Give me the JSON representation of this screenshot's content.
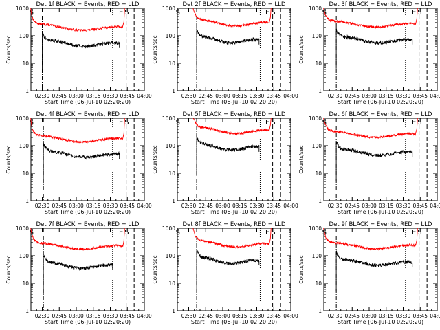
{
  "colors": {
    "events": "#000000",
    "lld": "#ff0000",
    "axis": "#000000"
  },
  "chart_data": [
    {
      "type": "line",
      "title": "Det 1f BLACK = Events, RED = LLD",
      "xlabel": "Start Time (06-Jul-10 02:20:20)",
      "ylabel": "Counts/sec",
      "x_ticks": [
        "02:30",
        "02:45",
        "03:00",
        "03:15",
        "03:30",
        "03:45",
        "04:00"
      ],
      "y_ticks": [
        "1",
        "10",
        "100",
        "1000"
      ],
      "ylog": true,
      "ylim": [
        1,
        1000
      ],
      "xlim_minutes": [
        20,
        120
      ],
      "markers": [
        {
          "label": "S",
          "t": 21
        },
        {
          "label": "E",
          "t": 100
        },
        {
          "label": "S",
          "t": 105
        }
      ],
      "events": {
        "t_start": 30,
        "t_end": 98,
        "level": 60
      },
      "lld": {
        "t_start": 21,
        "t_end": 101,
        "level": 230
      },
      "vlines": [
        {
          "t": 30,
          "style": "dashdot"
        },
        {
          "t": 92,
          "style": "dotted"
        },
        {
          "t": 104,
          "style": "dashed"
        },
        {
          "t": 111,
          "style": "dashed"
        }
      ]
    },
    {
      "type": "line",
      "title": "Det 2f BLACK = Events, RED = LLD",
      "xlabel": "Start Time (06-Jul-10 02:20:20)",
      "ylabel": "Counts/sec",
      "x_ticks": [
        "02:30",
        "02:45",
        "03:00",
        "03:15",
        "03:30",
        "03:45",
        "04:00"
      ],
      "y_ticks": [
        "1",
        "10",
        "100",
        "1000"
      ],
      "ylog": true,
      "ylim": [
        1,
        1000
      ],
      "xlim_minutes": [
        20,
        120
      ],
      "markers": [
        {
          "label": "S",
          "t": 21
        },
        {
          "label": "E",
          "t": 100
        },
        {
          "label": "S",
          "t": 105
        }
      ],
      "events": {
        "t_start": 37,
        "t_end": 92,
        "level": 80
      },
      "lld": {
        "t_start": 35,
        "t_end": 101,
        "level": 330
      },
      "vlines": [
        {
          "t": 37,
          "style": "dashdot"
        },
        {
          "t": 93,
          "style": "dotted"
        },
        {
          "t": 104,
          "style": "dashed"
        },
        {
          "t": 111,
          "style": "dashed"
        }
      ]
    },
    {
      "type": "line",
      "title": "Det 3f BLACK = Events, RED = LLD",
      "xlabel": "Start Time (06-Jul-10 02:20:20)",
      "ylabel": "Counts/sec",
      "x_ticks": [
        "02:30",
        "02:45",
        "03:00",
        "03:15",
        "03:30",
        "03:45",
        "04:00"
      ],
      "y_ticks": [
        "1",
        "10",
        "100",
        "1000"
      ],
      "ylog": true,
      "ylim": [
        1,
        1000
      ],
      "xlim_minutes": [
        20,
        120
      ],
      "markers": [
        {
          "label": "S",
          "t": 21
        },
        {
          "label": "E",
          "t": 100
        },
        {
          "label": "S",
          "t": 105
        }
      ],
      "events": {
        "t_start": 31,
        "t_end": 98,
        "level": 80
      },
      "lld": {
        "t_start": 21,
        "t_end": 101,
        "level": 300
      },
      "vlines": [
        {
          "t": 31,
          "style": "dashdot"
        },
        {
          "t": 92,
          "style": "dotted"
        },
        {
          "t": 104,
          "style": "dashed"
        },
        {
          "t": 111,
          "style": "dashed"
        }
      ]
    },
    {
      "type": "line",
      "title": "Det 4f BLACK = Events, RED = LLD",
      "xlabel": "Start Time (06-Jul-10 02:20:20)",
      "ylabel": "Counts/sec",
      "x_ticks": [
        "02:30",
        "02:45",
        "03:00",
        "03:15",
        "03:30",
        "03:45",
        "04:00"
      ],
      "y_ticks": [
        "1",
        "10",
        "100",
        "1000"
      ],
      "ylog": true,
      "ylim": [
        1,
        1000
      ],
      "xlim_minutes": [
        20,
        120
      ],
      "markers": [
        {
          "label": "S",
          "t": 21
        },
        {
          "label": "E",
          "t": 100
        },
        {
          "label": "S",
          "t": 105
        }
      ],
      "events": {
        "t_start": 31,
        "t_end": 98,
        "level": 55
      },
      "lld": {
        "t_start": 21,
        "t_end": 101,
        "level": 200
      },
      "vlines": [
        {
          "t": 31,
          "style": "dashdot"
        },
        {
          "t": 92,
          "style": "dotted"
        },
        {
          "t": 104,
          "style": "dashed"
        },
        {
          "t": 111,
          "style": "dashed"
        }
      ]
    },
    {
      "type": "line",
      "title": "Det 5f BLACK = Events, RED = LLD",
      "xlabel": "Start Time (06-Jul-10 02:20:20)",
      "ylabel": "Counts/sec",
      "x_ticks": [
        "02:30",
        "02:45",
        "03:00",
        "03:15",
        "03:30",
        "03:45",
        "04:00"
      ],
      "y_ticks": [
        "1",
        "10",
        "100",
        "1000"
      ],
      "ylog": true,
      "ylim": [
        1,
        1000
      ],
      "xlim_minutes": [
        20,
        120
      ],
      "markers": [
        {
          "label": "S",
          "t": 21
        },
        {
          "label": "E",
          "t": 100
        },
        {
          "label": "S",
          "t": 105
        }
      ],
      "events": {
        "t_start": 37,
        "t_end": 92,
        "level": 100
      },
      "lld": {
        "t_start": 35,
        "t_end": 101,
        "level": 400
      },
      "vlines": [
        {
          "t": 37,
          "style": "dashdot"
        },
        {
          "t": 93,
          "style": "dotted"
        },
        {
          "t": 104,
          "style": "dashed"
        },
        {
          "t": 111,
          "style": "dashed"
        }
      ]
    },
    {
      "type": "line",
      "title": "Det 6f BLACK = Events, RED = LLD",
      "xlabel": "Start Time (06-Jul-10 02:20:20)",
      "ylabel": "Counts/sec",
      "x_ticks": [
        "02:30",
        "02:45",
        "03:00",
        "03:15",
        "03:30",
        "03:45",
        "04:00"
      ],
      "y_ticks": [
        "1",
        "10",
        "100",
        "1000"
      ],
      "ylog": true,
      "ylim": [
        1,
        1000
      ],
      "xlim_minutes": [
        20,
        120
      ],
      "markers": [
        {
          "label": "S",
          "t": 21
        },
        {
          "label": "E",
          "t": 100
        },
        {
          "label": "S",
          "t": 105
        }
      ],
      "events": {
        "t_start": 31,
        "t_end": 98,
        "level": 65
      },
      "lld": {
        "t_start": 21,
        "t_end": 101,
        "level": 290
      },
      "vlines": [
        {
          "t": 31,
          "style": "dashdot"
        },
        {
          "t": 92,
          "style": "dotted"
        },
        {
          "t": 104,
          "style": "dashed"
        },
        {
          "t": 111,
          "style": "dashed"
        }
      ]
    },
    {
      "type": "line",
      "title": "Det 7f BLACK = Events, RED = LLD",
      "xlabel": "Start Time (06-Jul-10 02:20:20)",
      "ylabel": "Counts/sec",
      "x_ticks": [
        "02:30",
        "02:45",
        "03:00",
        "03:15",
        "03:30",
        "03:45",
        "04:00"
      ],
      "y_ticks": [
        "1",
        "10",
        "100",
        "1000"
      ],
      "ylog": true,
      "ylim": [
        1,
        1000
      ],
      "xlim_minutes": [
        20,
        120
      ],
      "markers": [
        {
          "label": "S",
          "t": 21
        },
        {
          "label": "E",
          "t": 100
        },
        {
          "label": "S",
          "t": 105
        }
      ],
      "events": {
        "t_start": 31,
        "t_end": 92,
        "level": 50
      },
      "lld": {
        "t_start": 21,
        "t_end": 101,
        "level": 250
      },
      "vlines": [
        {
          "t": 31,
          "style": "dashdot"
        },
        {
          "t": 92,
          "style": "dotted"
        },
        {
          "t": 104,
          "style": "dashed"
        },
        {
          "t": 111,
          "style": "dashed"
        }
      ]
    },
    {
      "type": "line",
      "title": "Det 8f BLACK = Events, RED = LLD",
      "xlabel": "Start Time (06-Jul-10 02:20:20)",
      "ylabel": "Counts/sec",
      "x_ticks": [
        "02:30",
        "02:45",
        "03:00",
        "03:15",
        "03:30",
        "03:45",
        "04:00"
      ],
      "y_ticks": [
        "1",
        "10",
        "100",
        "1000"
      ],
      "ylog": true,
      "ylim": [
        1,
        1000
      ],
      "xlim_minutes": [
        20,
        120
      ],
      "markers": [
        {
          "label": "S",
          "t": 21
        },
        {
          "label": "E",
          "t": 100
        },
        {
          "label": "S",
          "t": 105
        }
      ],
      "events": {
        "t_start": 37,
        "t_end": 92,
        "level": 75
      },
      "lld": {
        "t_start": 35,
        "t_end": 101,
        "level": 300
      },
      "vlines": [
        {
          "t": 37,
          "style": "dashdot"
        },
        {
          "t": 93,
          "style": "dotted"
        },
        {
          "t": 104,
          "style": "dashed"
        },
        {
          "t": 111,
          "style": "dashed"
        }
      ]
    },
    {
      "type": "line",
      "title": "Det 9f BLACK = Events, RED = LLD",
      "xlabel": "Start Time (06-Jul-10 02:20:20)",
      "ylabel": "Counts/sec",
      "x_ticks": [
        "02:30",
        "02:45",
        "03:00",
        "03:15",
        "03:30",
        "03:45",
        "04:00"
      ],
      "y_ticks": [
        "1",
        "10",
        "100",
        "1000"
      ],
      "ylog": true,
      "ylim": [
        1,
        1000
      ],
      "xlim_minutes": [
        20,
        120
      ],
      "markers": [
        {
          "label": "S",
          "t": 21
        },
        {
          "label": "E",
          "t": 100
        },
        {
          "label": "S",
          "t": 105
        }
      ],
      "events": {
        "t_start": 31,
        "t_end": 98,
        "level": 65
      },
      "lld": {
        "t_start": 21,
        "t_end": 101,
        "level": 260
      },
      "vlines": [
        {
          "t": 31,
          "style": "dashdot"
        },
        {
          "t": 92,
          "style": "dotted"
        },
        {
          "t": 104,
          "style": "dashed"
        },
        {
          "t": 111,
          "style": "dashed"
        }
      ]
    }
  ]
}
